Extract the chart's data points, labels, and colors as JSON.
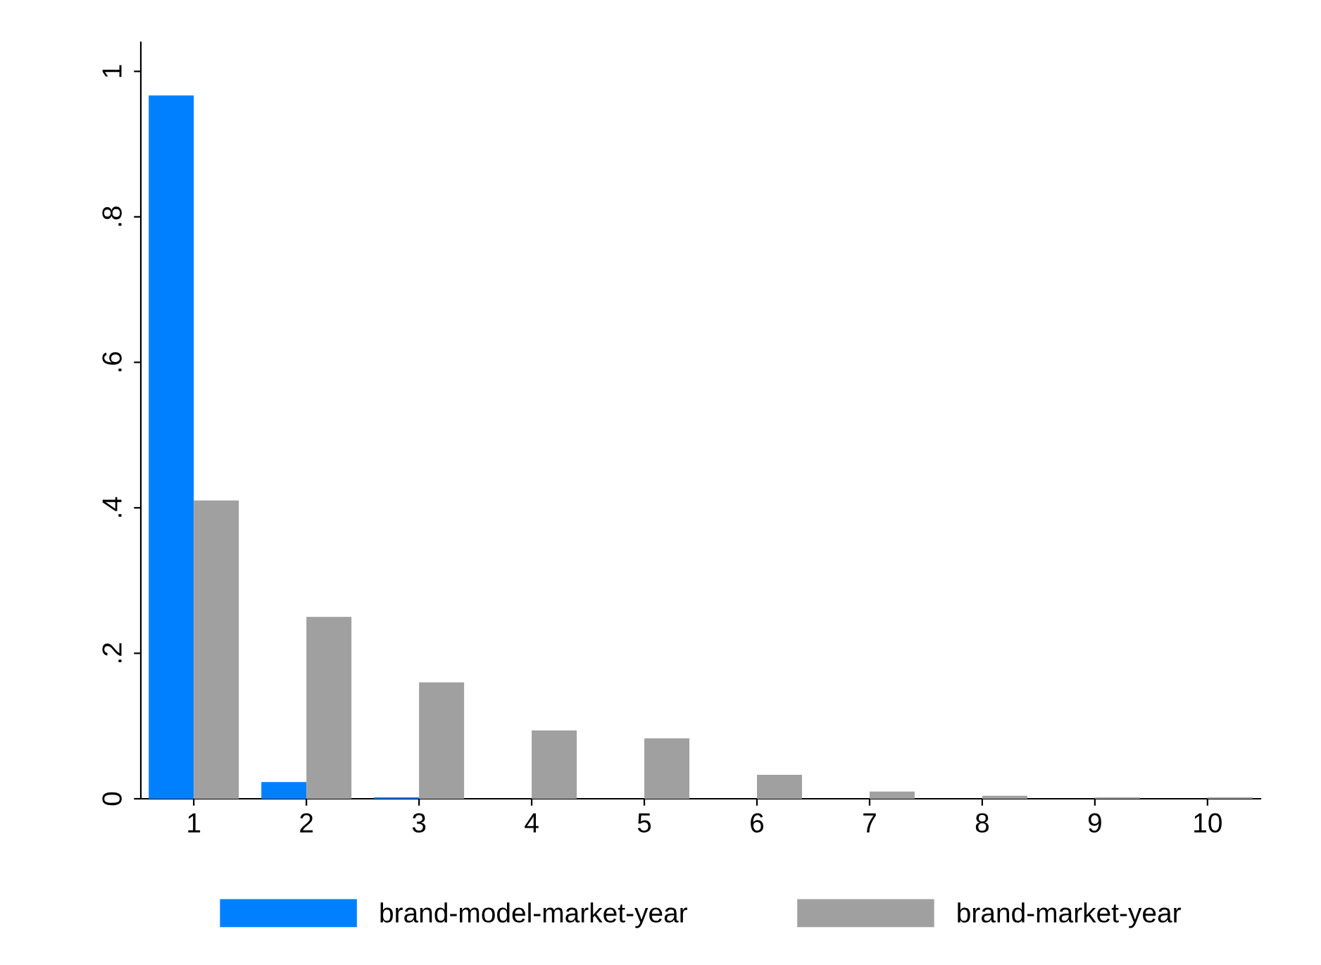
{
  "chart_data": {
    "type": "bar",
    "categories": [
      "1",
      "2",
      "3",
      "4",
      "5",
      "6",
      "7",
      "8",
      "9",
      "10"
    ],
    "series": [
      {
        "name": "brand-model-market-year",
        "color": "#0080ff",
        "values": [
          0.967,
          0.023,
          0.002,
          0,
          0,
          0,
          0,
          0,
          0,
          0
        ]
      },
      {
        "name": "brand-market-year",
        "color": "#a0a0a0",
        "values": [
          0.41,
          0.25,
          0.16,
          0.094,
          0.083,
          0.033,
          0.01,
          0.004,
          0.002,
          0.002
        ]
      }
    ],
    "ylim": [
      0,
      1.04
    ],
    "yticks": [
      0,
      {
        "value": 0.2,
        "label": ".2"
      },
      {
        "value": 0.4,
        "label": ".4"
      },
      {
        "value": 0.6,
        "label": ".6"
      },
      {
        "value": 0.8,
        "label": ".8"
      },
      1
    ],
    "grid": false,
    "legend": "bottom"
  }
}
